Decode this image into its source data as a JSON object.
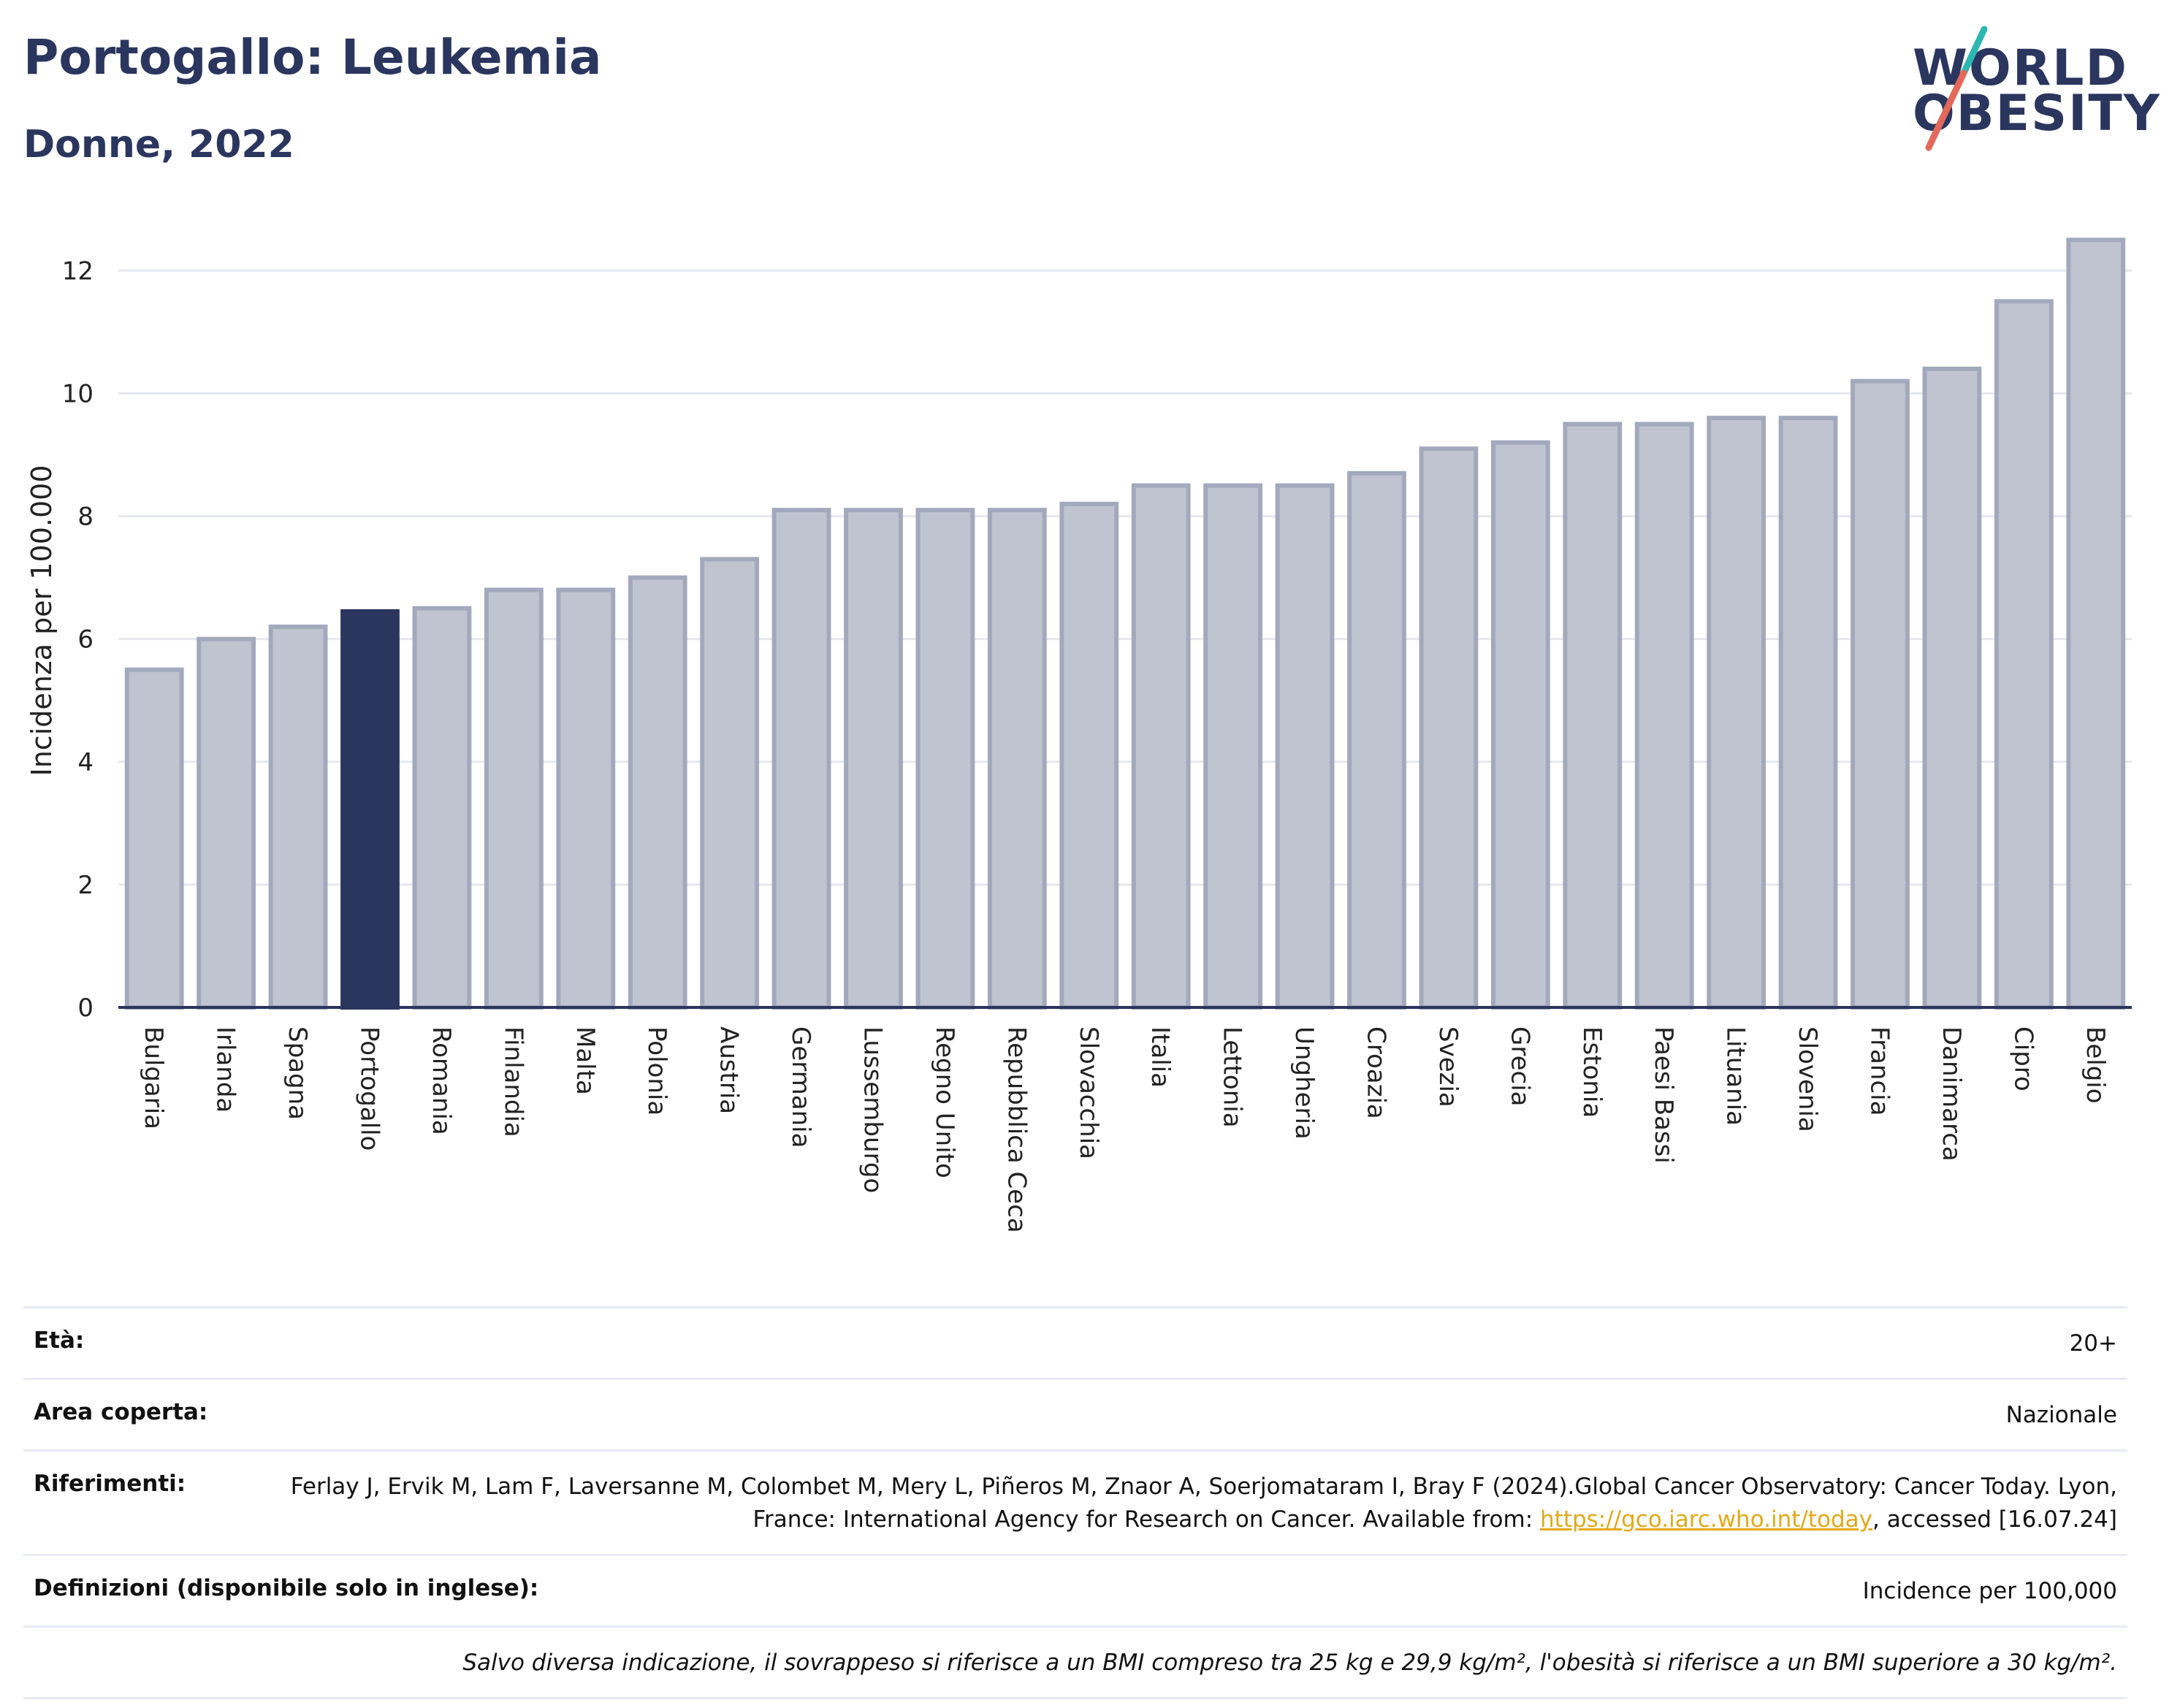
{
  "header": {
    "title": "Portogallo: Leukemia",
    "subtitle": "Donne, 2022"
  },
  "logo": {
    "line1": "WORLD",
    "line2": "OBESITY"
  },
  "chart_data": {
    "type": "bar",
    "ylabel": "Incidenza per 100.000",
    "ylim": [
      0,
      12.6
    ],
    "yticks": [
      0,
      2,
      4,
      6,
      8,
      10,
      12
    ],
    "grid": true,
    "highlight": "Portogallo",
    "categories": [
      "Bulgaria",
      "Irlanda",
      "Spagna",
      "Portogallo",
      "Romania",
      "Finlandia",
      "Malta",
      "Polonia",
      "Austria",
      "Germania",
      "Lussemburgo",
      "Regno Unito",
      "Repubblica Ceca",
      "Slovacchia",
      "Italia",
      "Lettonia",
      "Ungheria",
      "Croazia",
      "Svezia",
      "Grecia",
      "Estonia",
      "Paesi Bassi",
      "Lituania",
      "Slovenia",
      "Francia",
      "Danimarca",
      "Cipro",
      "Belgio"
    ],
    "values": [
      5.5,
      6.0,
      6.2,
      6.45,
      6.5,
      6.8,
      6.8,
      7.0,
      7.3,
      8.1,
      8.1,
      8.1,
      8.1,
      8.2,
      8.5,
      8.5,
      8.5,
      8.7,
      9.1,
      9.2,
      9.5,
      9.5,
      9.6,
      9.6,
      10.2,
      10.4,
      11.5,
      12.5
    ],
    "colors": {
      "bar": "#c0c4d0",
      "bar_border": "#a3a9bd",
      "highlight": "#2b365f",
      "grid": "#e6e8ef",
      "axis": "#2b365f"
    }
  },
  "info": {
    "age_label": "Età:",
    "age_value": "20+",
    "area_label": "Area coperta:",
    "area_value": "Nazionale",
    "ref_label": "Riferimenti:",
    "ref_text": "Ferlay J, Ervik M, Lam F, Laversanne M, Colombet M, Mery L, Piñeros M, Znaor A, Soerjomataram I, Bray F (2024).Global Cancer Observatory: Cancer Today. Lyon, France: International Agency for Research on Cancer. Available from:",
    "ref_link": "https://gco.iarc.who.int/today",
    "ref_tail": ", accessed [16.07.24]",
    "def_label": "Definizioni (disponibile solo in inglese):",
    "def_value": "Incidence per 100,000",
    "note": "Salvo diversa indicazione, il sovrappeso si riferisce a un BMI compreso tra 25 kg e 29,9 kg/m², l'obesità si riferisce a un BMI superiore a 30 kg/m²."
  }
}
